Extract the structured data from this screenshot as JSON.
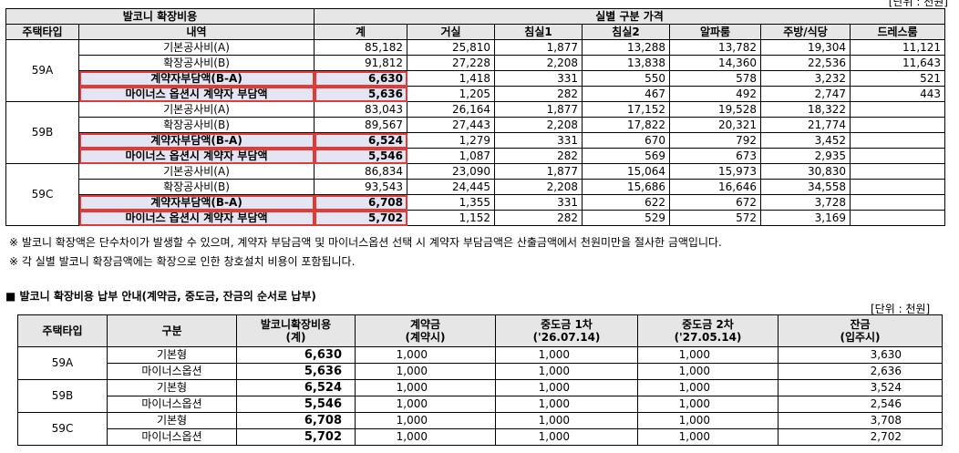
{
  "top_unit": "[단위 : 천원]",
  "table1": {
    "group_headers": [
      "발코니 확장비용",
      "실별 구분 가격"
    ],
    "col_headers": [
      "주택타입",
      "내역",
      "계",
      "거실",
      "침실1",
      "침실2",
      "알파룸",
      "주방/식당",
      "드레스룸"
    ],
    "types": [
      {
        "type": "59A",
        "rows": [
          {
            "label": "기본공사비(A)",
            "values": [
              "85,182",
              "25,810",
              "1,877",
              "13,288",
              "13,782",
              "19,304",
              "11,121"
            ]
          },
          {
            "label": "확장공사비(B)",
            "values": [
              "91,812",
              "27,228",
              "2,208",
              "13,838",
              "14,360",
              "22,536",
              "11,643"
            ]
          },
          {
            "label": "계약자부담액(B-A)",
            "values": [
              "6,630",
              "1,418",
              "331",
              "550",
              "578",
              "3,232",
              "521"
            ]
          },
          {
            "label": "마이너스 옵션시 계약자 부담액",
            "values": [
              "5,636",
              "1,205",
              "282",
              "467",
              "492",
              "2,747",
              "443"
            ]
          }
        ]
      },
      {
        "type": "59B",
        "rows": [
          {
            "label": "기본공사비(A)",
            "values": [
              "83,043",
              "26,164",
              "1,877",
              "17,152",
              "19,528",
              "18,322",
              ""
            ]
          },
          {
            "label": "확장공사비(B)",
            "values": [
              "89,567",
              "27,443",
              "2,208",
              "17,822",
              "20,321",
              "21,774",
              ""
            ]
          },
          {
            "label": "계약자부담액(B-A)",
            "values": [
              "6,524",
              "1,279",
              "331",
              "670",
              "792",
              "3,452",
              ""
            ]
          },
          {
            "label": "마이너스 옵션시 계약자 부담액",
            "values": [
              "5,546",
              "1,087",
              "282",
              "569",
              "673",
              "2,935",
              ""
            ]
          }
        ]
      },
      {
        "type": "59C",
        "rows": [
          {
            "label": "기본공사비(A)",
            "values": [
              "86,834",
              "23,090",
              "1,877",
              "15,064",
              "15,973",
              "30,830",
              ""
            ]
          },
          {
            "label": "확장공사비(B)",
            "values": [
              "93,543",
              "24,445",
              "2,208",
              "15,686",
              "16,646",
              "34,558",
              ""
            ]
          },
          {
            "label": "계약자부담액(B-A)",
            "values": [
              "6,708",
              "1,355",
              "331",
              "622",
              "672",
              "3,728",
              ""
            ]
          },
          {
            "label": "마이너스 옵션시 계약자 부담액",
            "values": [
              "5,702",
              "1,152",
              "282",
              "529",
              "572",
              "3,169",
              ""
            ]
          }
        ]
      }
    ]
  },
  "notes": [
    "※ 발코니 확장액은 단수차이가 발생할 수 있으며, 계약자 부담금액 및 마이너스옵션 선택 시 계약자 부담금액은 산출금액에서 천원미만을 절사한 금액입니다.",
    "※ 각 실별 발코니 확장금액에는 확장으로 인한 창호설치 비용이 포함됩니다."
  ],
  "section2_title": "■ 발코니 확장비용 납부 안내(계약금, 중도금, 잔금의 순서로 납부)",
  "unit2": "[단위 : 천원]",
  "table2": {
    "headers": [
      {
        "l1": "주택타입",
        "l2": ""
      },
      {
        "l1": "구분",
        "l2": ""
      },
      {
        "l1": "발코니확장비용",
        "l2": "(계)"
      },
      {
        "l1": "계약금",
        "l2": "(계약시)"
      },
      {
        "l1": "중도금 1차",
        "l2": "('26.07.14)"
      },
      {
        "l1": "중도금 2차",
        "l2": "('27.05.14)"
      },
      {
        "l1": "잔금",
        "l2": "(입주시)"
      }
    ],
    "types": [
      {
        "type": "59A",
        "rows": [
          {
            "label": "기본형",
            "values": [
              "6,630",
              "1,000",
              "1,000",
              "1,000",
              "3,630"
            ]
          },
          {
            "label": "마이너스옵션",
            "values": [
              "5,636",
              "1,000",
              "1,000",
              "1,000",
              "2,636"
            ]
          }
        ]
      },
      {
        "type": "59B",
        "rows": [
          {
            "label": "기본형",
            "values": [
              "6,524",
              "1,000",
              "1,000",
              "1,000",
              "3,524"
            ]
          },
          {
            "label": "마이너스옵션",
            "values": [
              "5,546",
              "1,000",
              "1,000",
              "1,000",
              "2,546"
            ]
          }
        ]
      },
      {
        "type": "59C",
        "rows": [
          {
            "label": "기본형",
            "values": [
              "6,708",
              "1,000",
              "1,000",
              "1,000",
              "3,708"
            ]
          },
          {
            "label": "마이너스옵션",
            "values": [
              "5,702",
              "1,000",
              "1,000",
              "1,000",
              "2,702"
            ]
          }
        ]
      }
    ]
  }
}
